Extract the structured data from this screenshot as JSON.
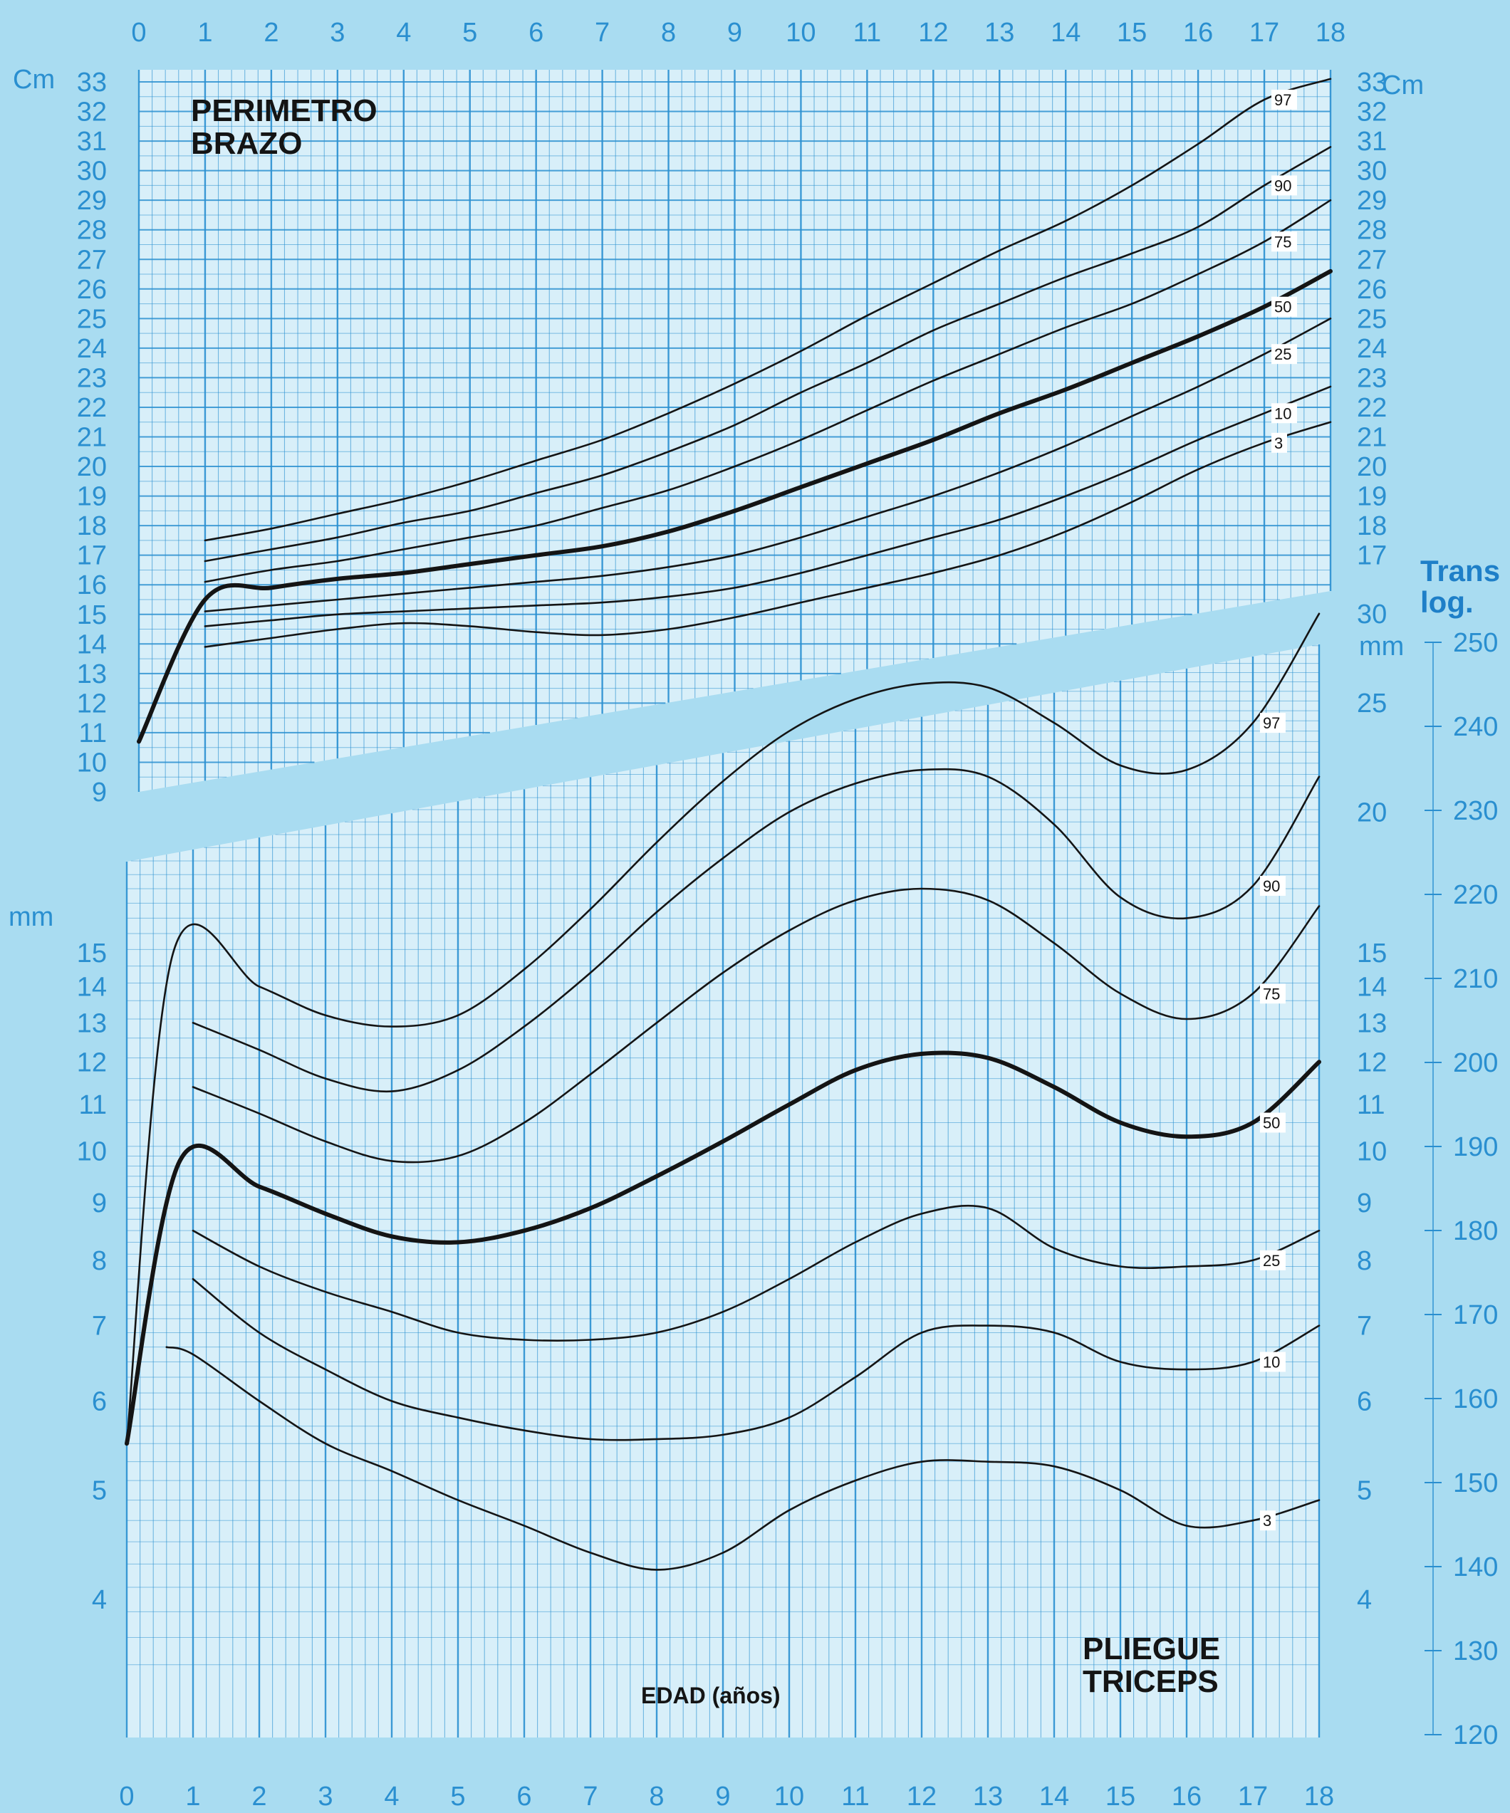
{
  "colors": {
    "background": "#a9dcf1",
    "paper": "#ffffff",
    "grid": "#2a8fd0",
    "curve": "#141414",
    "tick_text": "#2a8fd0",
    "trans_text": "#1e7fc8"
  },
  "text": {
    "arm_title_line1": "PERIMETRO",
    "arm_title_line2": "BRAZO",
    "triceps_title_line1": "PLIEGUE",
    "triceps_title_line2": "TRICEPS",
    "age_label": "EDAD (años)",
    "arm_unit_left": "Cm",
    "arm_unit_right": "Cm",
    "triceps_unit_left": "mm",
    "triceps_unit_right": "mm",
    "trans_line1": "Trans",
    "trans_line2": "log."
  },
  "chart_data": [
    {
      "type": "line",
      "title": "PERIMETRO BRAZO",
      "xlabel": "EDAD (años)",
      "ylabel": "Cm",
      "x_ticks": [
        0,
        1,
        2,
        3,
        4,
        5,
        6,
        7,
        8,
        9,
        10,
        11,
        12,
        13,
        14,
        15,
        16,
        17,
        18
      ],
      "y_ticks_left": [
        9,
        10,
        11,
        12,
        13,
        14,
        15,
        16,
        17,
        18,
        19,
        20,
        21,
        22,
        23,
        24,
        25,
        26,
        27,
        28,
        29,
        30,
        31,
        32,
        33
      ],
      "y_ticks_right": [
        17,
        18,
        19,
        20,
        21,
        22,
        23,
        24,
        25,
        26,
        27,
        28,
        29,
        30,
        31,
        32,
        33
      ],
      "xlim": [
        0,
        18
      ],
      "ylim": [
        9,
        33
      ],
      "grid": true,
      "series": [
        {
          "name": "97",
          "x": [
            1,
            2,
            3,
            4,
            5,
            6,
            7,
            8,
            9,
            10,
            11,
            12,
            13,
            14,
            15,
            16,
            17,
            18
          ],
          "values": [
            17.5,
            17.9,
            18.4,
            18.9,
            19.5,
            20.2,
            20.9,
            21.8,
            22.8,
            23.9,
            25.1,
            26.2,
            27.3,
            28.3,
            29.5,
            30.9,
            32.4,
            33.1
          ]
        },
        {
          "name": "90",
          "x": [
            1,
            2,
            3,
            4,
            5,
            6,
            7,
            8,
            9,
            10,
            11,
            12,
            13,
            14,
            15,
            16,
            17,
            18
          ],
          "values": [
            16.8,
            17.2,
            17.6,
            18.1,
            18.5,
            19.1,
            19.7,
            20.5,
            21.4,
            22.5,
            23.5,
            24.6,
            25.5,
            26.4,
            27.2,
            28.1,
            29.5,
            30.8
          ]
        },
        {
          "name": "75",
          "x": [
            1,
            2,
            3,
            4,
            5,
            6,
            7,
            8,
            9,
            10,
            11,
            12,
            13,
            14,
            15,
            16,
            17,
            18
          ],
          "values": [
            16.1,
            16.5,
            16.8,
            17.2,
            17.6,
            18.0,
            18.6,
            19.2,
            20.0,
            20.9,
            21.9,
            22.9,
            23.8,
            24.7,
            25.5,
            26.5,
            27.6,
            29.0
          ]
        },
        {
          "name": "50",
          "x": [
            0,
            1,
            2,
            3,
            4,
            5,
            6,
            7,
            8,
            9,
            10,
            11,
            12,
            13,
            14,
            15,
            16,
            17,
            18
          ],
          "values": [
            10.7,
            15.5,
            15.9,
            16.2,
            16.4,
            16.7,
            17.0,
            17.3,
            17.8,
            18.5,
            19.3,
            20.1,
            20.9,
            21.8,
            22.6,
            23.5,
            24.4,
            25.4,
            26.6
          ]
        },
        {
          "name": "25",
          "x": [
            1,
            2,
            3,
            4,
            5,
            6,
            7,
            8,
            9,
            10,
            11,
            12,
            13,
            14,
            15,
            16,
            17,
            18
          ],
          "values": [
            15.1,
            15.3,
            15.5,
            15.7,
            15.9,
            16.1,
            16.3,
            16.6,
            17.0,
            17.6,
            18.3,
            19.0,
            19.8,
            20.7,
            21.7,
            22.7,
            23.8,
            25.0
          ]
        },
        {
          "name": "10",
          "x": [
            1,
            2,
            3,
            4,
            5,
            6,
            7,
            8,
            9,
            10,
            11,
            12,
            13,
            14,
            15,
            16,
            17,
            18
          ],
          "values": [
            14.6,
            14.8,
            15.0,
            15.1,
            15.2,
            15.3,
            15.4,
            15.6,
            15.9,
            16.4,
            17.0,
            17.6,
            18.2,
            19.0,
            19.9,
            20.9,
            21.8,
            22.7
          ]
        },
        {
          "name": "3",
          "x": [
            1,
            2,
            3,
            4,
            5,
            6,
            7,
            8,
            9,
            10,
            11,
            12,
            13,
            14,
            15,
            16,
            17,
            18
          ],
          "values": [
            13.9,
            14.2,
            14.5,
            14.7,
            14.6,
            14.4,
            14.3,
            14.5,
            14.9,
            15.4,
            15.9,
            16.4,
            17.0,
            17.8,
            18.8,
            19.9,
            20.8,
            21.5
          ]
        }
      ]
    },
    {
      "type": "line",
      "title": "PLIEGUE TRICEPS",
      "xlabel": "EDAD (años)",
      "ylabel": "mm",
      "log_scale": true,
      "x_ticks": [
        0,
        1,
        2,
        3,
        4,
        5,
        6,
        7,
        8,
        9,
        10,
        11,
        12,
        13,
        14,
        15,
        16,
        17,
        18
      ],
      "y_ticks_left": [
        4,
        5,
        6,
        7,
        8,
        9,
        10,
        11,
        12,
        13,
        14,
        15
      ],
      "y_ticks_right": [
        4,
        5,
        6,
        7,
        8,
        9,
        10,
        11,
        12,
        13,
        14,
        15,
        20,
        25,
        30
      ],
      "trans_log_ticks": [
        120,
        130,
        140,
        150,
        160,
        170,
        180,
        190,
        200,
        210,
        220,
        230,
        240,
        250
      ],
      "xlim": [
        0,
        18
      ],
      "grid": true,
      "series": [
        {
          "name": "97",
          "x": [
            0,
            0.7,
            2,
            3,
            4,
            5,
            6,
            7,
            8,
            9,
            10,
            11,
            12,
            13,
            14,
            15,
            16,
            17,
            18
          ],
          "values": [
            5.5,
            15.0,
            14.0,
            13.2,
            12.9,
            13.2,
            14.5,
            16.4,
            18.8,
            21.3,
            23.6,
            25.2,
            26.0,
            25.8,
            24.0,
            22.0,
            21.8,
            24.0,
            30.0
          ]
        },
        {
          "name": "90",
          "x": [
            1,
            2,
            3,
            4,
            5,
            6,
            7,
            8,
            9,
            10,
            11,
            12,
            13,
            14,
            15,
            16,
            17,
            18
          ],
          "values": [
            13.0,
            12.3,
            11.6,
            11.3,
            11.8,
            12.9,
            14.4,
            16.3,
            18.2,
            20.0,
            21.2,
            21.8,
            21.5,
            19.5,
            16.8,
            16.1,
            17.2,
            21.5
          ]
        },
        {
          "name": "75",
          "x": [
            1,
            2,
            3,
            4,
            5,
            6,
            7,
            8,
            9,
            10,
            11,
            12,
            13,
            14,
            15,
            16,
            17,
            18
          ],
          "values": [
            11.4,
            10.8,
            10.2,
            9.8,
            9.9,
            10.6,
            11.7,
            13.0,
            14.4,
            15.7,
            16.7,
            17.1,
            16.7,
            15.3,
            13.8,
            13.1,
            13.8,
            16.5
          ]
        },
        {
          "name": "50",
          "x": [
            0,
            0.8,
            2,
            3,
            4,
            5,
            6,
            7,
            8,
            9,
            10,
            11,
            12,
            13,
            14,
            15,
            16,
            17,
            18
          ],
          "values": [
            5.5,
            9.8,
            9.3,
            8.8,
            8.4,
            8.3,
            8.5,
            8.9,
            9.5,
            10.2,
            11.0,
            11.8,
            12.2,
            12.1,
            11.4,
            10.6,
            10.3,
            10.6,
            12.0
          ]
        },
        {
          "name": "25",
          "x": [
            1,
            2,
            3,
            4,
            5,
            6,
            7,
            8,
            9,
            10,
            11,
            12,
            13,
            14,
            15,
            16,
            17,
            18
          ],
          "values": [
            8.5,
            7.9,
            7.5,
            7.2,
            6.9,
            6.8,
            6.8,
            6.9,
            7.2,
            7.7,
            8.3,
            8.8,
            8.9,
            8.2,
            7.9,
            7.9,
            8.0,
            8.5
          ]
        },
        {
          "name": "10",
          "x": [
            1,
            2,
            3,
            4,
            5,
            6,
            7,
            8,
            9,
            10,
            11,
            12,
            13,
            14,
            15,
            16,
            17,
            18
          ],
          "values": [
            7.7,
            6.9,
            6.4,
            6.0,
            5.8,
            5.65,
            5.55,
            5.55,
            5.6,
            5.8,
            6.3,
            6.9,
            7.0,
            6.9,
            6.5,
            6.4,
            6.5,
            7.0
          ]
        },
        {
          "name": "3",
          "x": [
            0.6,
            1,
            2,
            3,
            4,
            5,
            6,
            7,
            8,
            9,
            10,
            11,
            12,
            13,
            14,
            15,
            16,
            17,
            18
          ],
          "values": [
            6.7,
            6.6,
            6.0,
            5.5,
            5.2,
            4.9,
            4.65,
            4.4,
            4.25,
            4.4,
            4.8,
            5.1,
            5.3,
            5.3,
            5.25,
            5.0,
            4.65,
            4.7,
            4.9
          ]
        }
      ]
    }
  ]
}
